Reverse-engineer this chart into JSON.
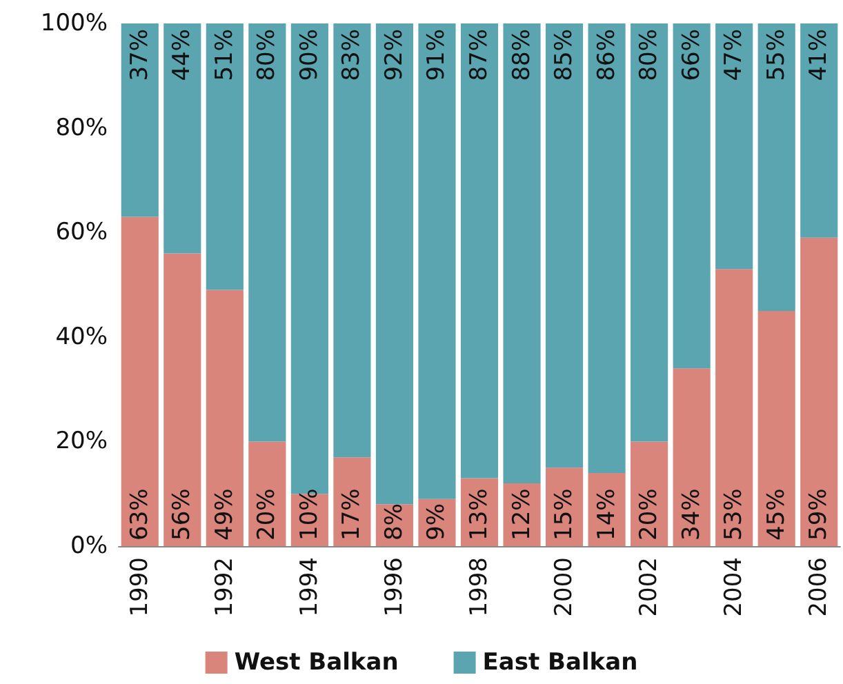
{
  "chart_data": {
    "type": "bar",
    "stacked": true,
    "categories": [
      "1990",
      null,
      "1992",
      null,
      "1994",
      null,
      "1996",
      null,
      "1998",
      null,
      "2000",
      null,
      "2002",
      null,
      "2004",
      null,
      "2006"
    ],
    "series": [
      {
        "name": "West Balkan",
        "color": "#d9857c",
        "values": [
          63,
          56,
          49,
          20,
          10,
          17,
          8,
          9,
          13,
          12,
          15,
          14,
          20,
          34,
          53,
          45,
          59
        ],
        "value_labels": [
          "63%",
          "56%",
          "49%",
          "20%",
          "10%",
          "17%",
          "8%",
          "9%",
          "13%",
          "12%",
          "15%",
          "14%",
          "20%",
          "34%",
          "53%",
          "45%",
          "59%"
        ]
      },
      {
        "name": "East Balkan",
        "color": "#5ba5b0",
        "values": [
          37,
          44,
          51,
          80,
          90,
          83,
          92,
          91,
          87,
          88,
          85,
          86,
          80,
          66,
          47,
          55,
          41
        ],
        "value_labels": [
          "37%",
          "44%",
          "51%",
          "80%",
          "90%",
          "83%",
          "92%",
          "91%",
          "87%",
          "88%",
          "85%",
          "86%",
          "80%",
          "66%",
          "47%",
          "55%",
          "41%"
        ]
      }
    ],
    "ylim": [
      0,
      100
    ],
    "yticks": [
      {
        "value": 0,
        "label": "0%"
      },
      {
        "value": 20,
        "label": "20%"
      },
      {
        "value": 40,
        "label": "40%"
      },
      {
        "value": 60,
        "label": "60%"
      },
      {
        "value": 80,
        "label": "80%"
      },
      {
        "value": 100,
        "label": "100%"
      }
    ],
    "legend": "bottom"
  }
}
